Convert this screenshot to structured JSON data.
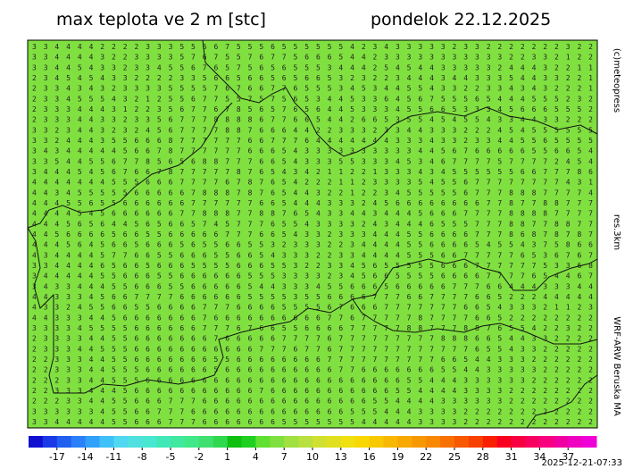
{
  "header": {
    "title": "max teplota ve 2 m [stc]",
    "date": "pondelok 22.12.2025"
  },
  "side_labels": {
    "copyright": "(c)meteopress",
    "resolution": "res.3km",
    "model": "WRF-ARW Beruska MA"
  },
  "timestamp": "2025-12-21-07:33",
  "map": {
    "color": "#80e040",
    "rows": [
      "33444422223335566755565555554234333332332222222322",
      "33444432233335767557677566654423333333333322332122",
      "33445433233455676575656555344425454433333244432211",
      "23454543322223356656656566532322344434433354433221",
      "23343432333355557676677655534534455433223343432221",
      "23345554321255677557575653445336456755565444555232",
      "23334443122356776785657656445333455665333456665552",
      "23334433233567778888677665442665355454554334433222",
      "33234432324567777887666442233323344333222454555555",
      "33244435566687777776677764444444333433233445565555",
      "34344444566787777776665433333333334456766666556654",
      "33544556778565688777665433355333453467777577772454",
      "34445456766787777787654342112213334345555556677786",
      "44444445556667777678765422211233335455677777777431",
      "44345555566666788878765443221223455555677788877774",
      "44455655666666777777665444333245666666667787788777",
      "44445456666667788877887654334434445666777788887777",
      "44456564456566574577765543333243444655577788778877",
      "44566665665566666777665433233344455666677786878787",
      "44456456656665655665532333223444455666654554375866",
      "43444457766556665566543332233444455566777776536767",
      "33444465665666555566655322334565555566677777753368",
      "34444455666556666665553333234566555566667777654467",
      "34334445566655666665443334556665666667776644433344",
      "44333456677776666665555355666677766777766522244444",
      "43324556655666677766665555676667777777665433321123",
      "44333445666666676666666666776777778777766522222222",
      "33334555566666677767665566667777788777887655422322",
      "23333445566666667666667777677777777788866544332222",
      "23334455566666666666777677677777777777765543322222",
      "22333445566666665566666666777777777766544333222222",
      "22333445556666665666666666677666666655443333322222",
      "22233445556666666666666666666666655444333333222222",
      "22333444566666666666766666666666554444333322222222",
      "22233445566677766666666666666655444433333322222222",
      "33333345566777666666666666665554443333222222222222",
      "33444445566677766666665555555444443333222222222222"
    ]
  },
  "colorbar": {
    "range": [
      -20,
      40
    ],
    "ticks": [
      -17,
      -14,
      -11,
      -8,
      -5,
      -2,
      1,
      4,
      7,
      10,
      13,
      16,
      19,
      22,
      25,
      28,
      31,
      34,
      37
    ],
    "colors": [
      "#1010d0",
      "#1a3ae8",
      "#2060f0",
      "#2a80f8",
      "#30a0f8",
      "#40c0f8",
      "#50d8f0",
      "#50e0e0",
      "#48e8d0",
      "#40e8b8",
      "#40e8a0",
      "#40e888",
      "#40e070",
      "#30d850",
      "#10c010",
      "#20d020",
      "#60e030",
      "#80e040",
      "#a0e040",
      "#b8e040",
      "#d0e030",
      "#e0e020",
      "#f0e010",
      "#f8d800",
      "#f8c800",
      "#f8b800",
      "#f8a800",
      "#f89800",
      "#f88800",
      "#f87000",
      "#f85800",
      "#f84000",
      "#f82000",
      "#f80020",
      "#f80040",
      "#f80060",
      "#f80080",
      "#f000a0",
      "#f000c0",
      "#f000d8"
    ]
  }
}
